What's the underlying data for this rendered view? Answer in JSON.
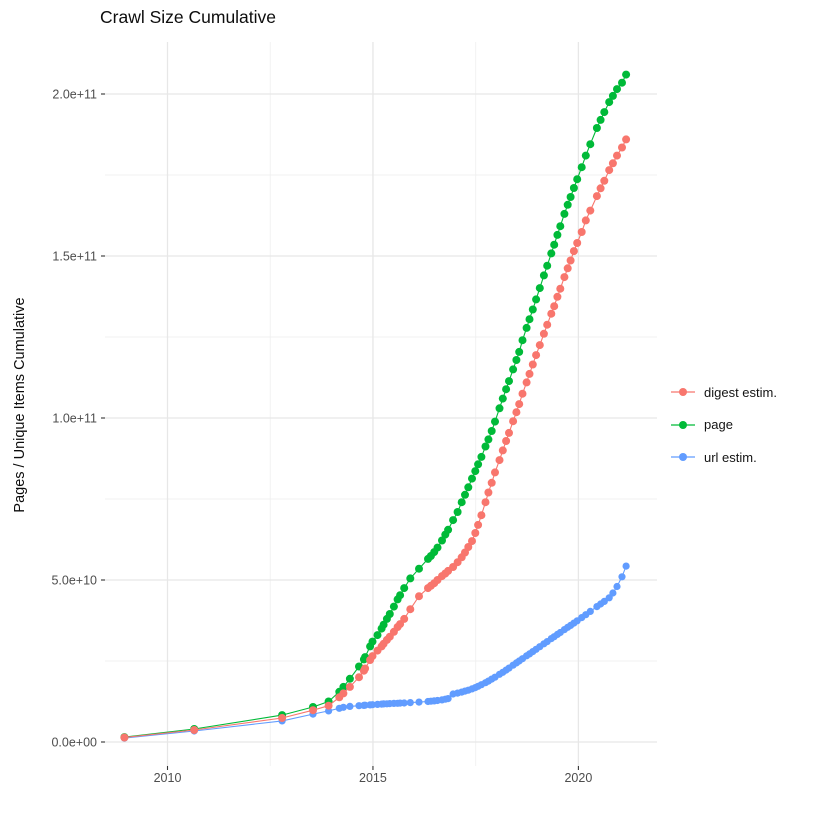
{
  "title": "Crawl Size Cumulative",
  "y_axis_title": "Pages / Unique Items Cumulative",
  "legend": {
    "position": "right",
    "items": [
      {
        "label": "digest estim.",
        "color": "#F8766D"
      },
      {
        "label": "page",
        "color": "#00BA38"
      },
      {
        "label": "url estim.",
        "color": "#619CFF"
      }
    ]
  },
  "chart_data": {
    "type": "scatter",
    "title": "Crawl Size Cumulative",
    "xlabel": "",
    "ylabel": "Pages / Unique Items Cumulative",
    "grid": true,
    "legend_position": "right",
    "x_unit": "year (decimal)",
    "value_unit": "billions of items (1e9)",
    "xlim": [
      2008.48,
      2021.91
    ],
    "ylim_billion": [
      0,
      216
    ],
    "x_ticks": {
      "major": [
        2010,
        2015,
        2020
      ],
      "major_labels": [
        "2010",
        "2015",
        "2020"
      ],
      "minor": [
        2012.5,
        2017.5
      ]
    },
    "y_ticks": {
      "major_billion": [
        0,
        50,
        100,
        150,
        200
      ],
      "major_labels": [
        "0.0e+00",
        "5.0e+10",
        "1.0e+11",
        "1.5e+11",
        "2.0e+11"
      ],
      "minor_billion": [
        25,
        75,
        125,
        175
      ]
    },
    "x": [
      2008.95,
      2010.65,
      2012.79,
      2013.54,
      2013.92,
      2014.18,
      2014.28,
      2014.44,
      2014.66,
      2014.78,
      2014.81,
      2014.93,
      2014.99,
      2015.11,
      2015.21,
      2015.26,
      2015.34,
      2015.41,
      2015.51,
      2015.6,
      2015.66,
      2015.76,
      2015.91,
      2016.12,
      2016.34,
      2016.41,
      2016.49,
      2016.57,
      2016.68,
      2016.76,
      2016.83,
      2016.95,
      2017.06,
      2017.16,
      2017.24,
      2017.32,
      2017.41,
      2017.49,
      2017.56,
      2017.64,
      2017.74,
      2017.81,
      2017.89,
      2017.97,
      2018.08,
      2018.16,
      2018.24,
      2018.31,
      2018.41,
      2018.49,
      2018.56,
      2018.64,
      2018.74,
      2018.81,
      2018.89,
      2018.97,
      2019.06,
      2019.16,
      2019.24,
      2019.34,
      2019.41,
      2019.49,
      2019.56,
      2019.66,
      2019.74,
      2019.81,
      2019.89,
      2019.97,
      2020.08,
      2020.18,
      2020.29,
      2020.45,
      2020.54,
      2020.63,
      2020.75,
      2020.84,
      2020.94,
      2021.06,
      2021.16
    ],
    "series": [
      {
        "name": "digest estim.",
        "color": "#F8766D",
        "dot_radius": 4,
        "values_billion": [
          1.4,
          3.7,
          7.4,
          9.8,
          11.2,
          13.8,
          15.0,
          17.0,
          20.0,
          22.0,
          22.7,
          25.3,
          26.5,
          28.2,
          29.5,
          30.3,
          31.5,
          32.5,
          34.0,
          35.5,
          36.4,
          38.0,
          41.0,
          45.0,
          47.5,
          48.2,
          49.0,
          50.0,
          51.2,
          52.0,
          52.8,
          54.0,
          55.5,
          57.0,
          58.5,
          60.2,
          62.0,
          64.5,
          67.0,
          70.0,
          74.0,
          77.0,
          80.0,
          83.2,
          87.0,
          90.0,
          92.9,
          95.4,
          99.0,
          101.8,
          104.3,
          107.5,
          111.0,
          113.6,
          116.5,
          119.4,
          122.5,
          126.0,
          128.8,
          132.2,
          134.5,
          137.4,
          139.9,
          143.5,
          146.2,
          148.6,
          151.5,
          154.0,
          157.4,
          161.0,
          164.0,
          168.5,
          170.9,
          173.2,
          176.5,
          178.6,
          181.0,
          183.5,
          186.0
        ]
      },
      {
        "name": "page",
        "color": "#00BA38",
        "dot_radius": 4,
        "values_billion": [
          1.5,
          4.0,
          8.3,
          10.8,
          12.5,
          15.5,
          17.0,
          19.5,
          23.3,
          25.5,
          26.2,
          29.5,
          31.0,
          33.0,
          35.0,
          36.2,
          38.0,
          39.5,
          41.8,
          44.0,
          45.3,
          47.5,
          50.5,
          53.5,
          56.5,
          57.4,
          58.6,
          60.0,
          62.2,
          64.0,
          65.5,
          68.5,
          71.0,
          74.0,
          76.3,
          78.6,
          81.3,
          83.6,
          85.7,
          88.0,
          91.2,
          93.4,
          96.0,
          98.9,
          103.0,
          106.0,
          108.9,
          111.4,
          115.0,
          117.9,
          120.4,
          124.0,
          127.8,
          130.5,
          133.5,
          136.6,
          140.1,
          144.0,
          147.0,
          150.8,
          153.5,
          156.5,
          159.2,
          163.0,
          165.8,
          168.2,
          171.0,
          173.7,
          177.4,
          181.0,
          184.5,
          189.5,
          192.0,
          194.4,
          197.5,
          199.4,
          201.5,
          203.5,
          206.0
        ]
      },
      {
        "name": "url estim.",
        "color": "#619CFF",
        "dot_radius": 3.6,
        "values_billion": [
          1.2,
          3.4,
          6.5,
          8.6,
          9.6,
          10.4,
          10.7,
          11.0,
          11.2,
          11.3,
          11.35,
          11.45,
          11.5,
          11.6,
          11.7,
          11.75,
          11.8,
          11.85,
          11.9,
          11.95,
          12.0,
          12.05,
          12.15,
          12.3,
          12.5,
          12.6,
          12.7,
          12.8,
          13.0,
          13.2,
          13.4,
          14.8,
          15.1,
          15.4,
          15.7,
          16.0,
          16.4,
          16.8,
          17.2,
          17.7,
          18.3,
          18.8,
          19.4,
          20.0,
          20.9,
          21.5,
          22.2,
          22.8,
          23.7,
          24.4,
          25.0,
          25.7,
          26.6,
          27.2,
          27.9,
          28.6,
          29.4,
          30.3,
          31.0,
          31.9,
          32.5,
          33.2,
          33.8,
          34.7,
          35.4,
          36.0,
          36.7,
          37.4,
          38.4,
          39.3,
          40.3,
          41.8,
          42.6,
          43.4,
          44.5,
          46.0,
          48.0,
          51.0,
          54.3
        ]
      }
    ],
    "colors": {
      "grid_major": "#E7E7E7",
      "grid_minor": "#F0F0F0",
      "tick_mark": "#333333",
      "tick_text": "#4D4D4D"
    }
  }
}
